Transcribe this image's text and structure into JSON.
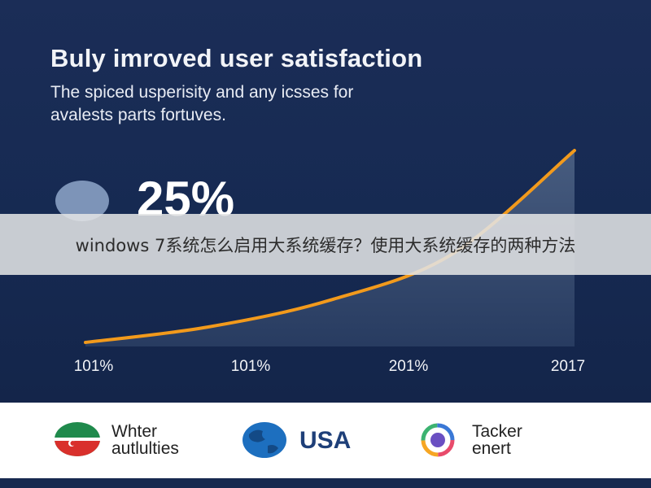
{
  "chart_data": {
    "type": "area",
    "title": "Buly imroved user satisfaction",
    "subtitle_lines": [
      "The spiced usperisity and any icsses for",
      "avalests parts fortuves."
    ],
    "highlight_value": "25%",
    "x_tick_labels": [
      "101%",
      "101%",
      "201%",
      "2017"
    ],
    "series": [
      {
        "values": [
          0.0,
          0.08,
          0.22,
          0.46,
          1.0
        ]
      }
    ],
    "ylim": [
      0,
      1
    ],
    "grid": false,
    "colors": {
      "line": "#f29a1c",
      "fill": "#3d5275"
    }
  },
  "caption": "windows 7系统怎么启用大系统缓存？使用大系统缓存的两种方法",
  "footer": {
    "logos": [
      {
        "icon": "flag-circle-icon",
        "line1": "Whter",
        "line2": "autlulties"
      },
      {
        "icon": "globe-icon",
        "label": "USA"
      },
      {
        "icon": "color-ring-icon",
        "line1": "Tacker",
        "line2": "enert"
      }
    ]
  }
}
